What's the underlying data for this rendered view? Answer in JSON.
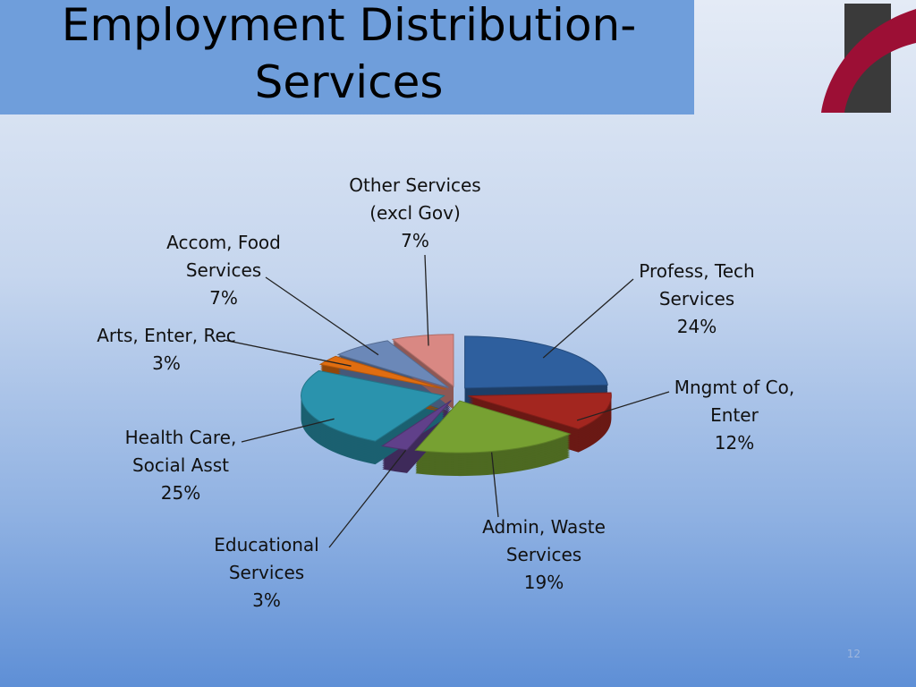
{
  "chart_data": {
    "type": "pie",
    "title": "Employment Distribution-Services",
    "categories": [
      "Profess, Tech Services",
      "Mngmt of Co, Enter",
      "Admin, Waste Services",
      "Educational Services",
      "Health Care, Social Asst",
      "Arts, Enter, Rec",
      "Accom, Food Services",
      "Other Services (excl Gov)"
    ],
    "values": [
      24,
      12,
      19,
      3,
      25,
      3,
      7,
      7
    ],
    "value_labels": [
      "24%",
      "12%",
      "19%",
      "3%",
      "25%",
      "3%",
      "7%",
      "7%"
    ],
    "colors": [
      "#2e5f9e",
      "#a3261f",
      "#77a132",
      "#60408a",
      "#2a93ad",
      "#e06d10",
      "#6b88b8",
      "#d98883"
    ]
  },
  "page_number": "12"
}
